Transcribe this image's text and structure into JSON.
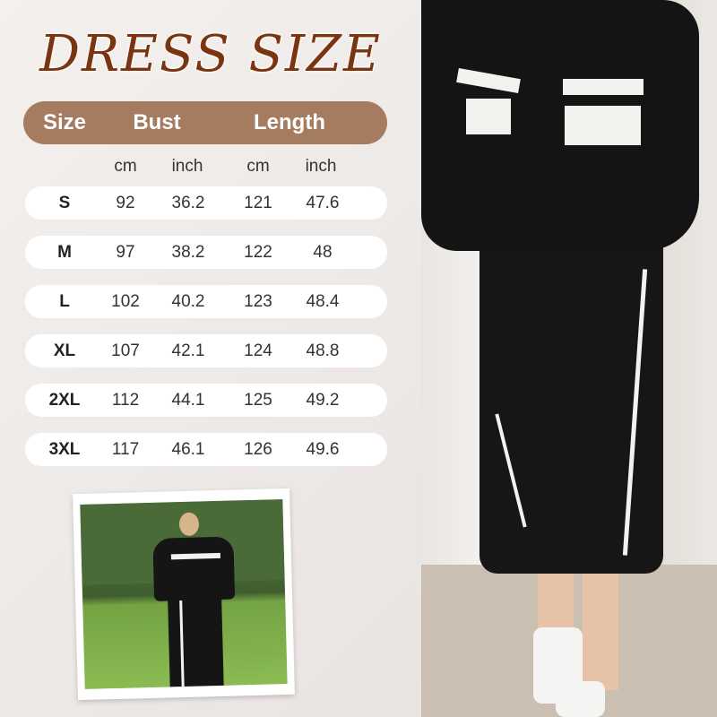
{
  "title": "DRESS SIZE",
  "header": {
    "size": "Size",
    "bust": "Bust",
    "length": "Length"
  },
  "units": {
    "bust_cm": "cm",
    "bust_inch": "inch",
    "length_cm": "cm",
    "length_inch": "inch"
  },
  "rows": [
    {
      "size": "S",
      "bust_cm": "92",
      "bust_inch": "36.2",
      "length_cm": "121",
      "length_inch": "47.6"
    },
    {
      "size": "M",
      "bust_cm": "97",
      "bust_inch": "38.2",
      "length_cm": "122",
      "length_inch": "48"
    },
    {
      "size": "L",
      "bust_cm": "102",
      "bust_inch": "40.2",
      "length_cm": "123",
      "length_inch": "48.4"
    },
    {
      "size": "XL",
      "bust_cm": "107",
      "bust_inch": "42.1",
      "length_cm": "124",
      "length_inch": "48.8"
    },
    {
      "size": "2XL",
      "bust_cm": "112",
      "bust_inch": "44.1",
      "length_cm": "125",
      "length_inch": "49.2"
    },
    {
      "size": "3XL",
      "bust_cm": "117",
      "bust_inch": "46.1",
      "length_cm": "126",
      "length_inch": "49.6"
    }
  ],
  "colors": {
    "title": "#7a3410",
    "header_bg": "#a67c60",
    "row_bg": "#ffffff"
  }
}
